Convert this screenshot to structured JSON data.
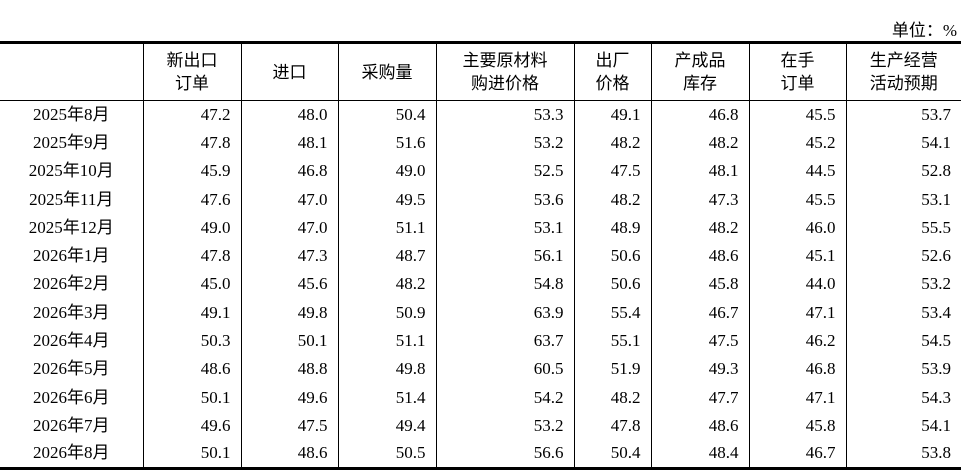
{
  "unit": "单位：%",
  "table": {
    "columns": [
      [
        "新出口",
        "订单"
      ],
      [
        "进口"
      ],
      [
        "采购量"
      ],
      [
        "主要原材料",
        "购进价格"
      ],
      [
        "出厂",
        "价格"
      ],
      [
        "产成品",
        "库存"
      ],
      [
        "在手",
        "订单"
      ],
      [
        "生产经营",
        "活动预期"
      ]
    ],
    "rows": [
      [
        "2025年8月",
        "47.2",
        "48.0",
        "50.4",
        "53.3",
        "49.1",
        "46.8",
        "45.5",
        "53.7"
      ],
      [
        "2025年9月",
        "47.8",
        "48.1",
        "51.6",
        "53.2",
        "48.2",
        "48.2",
        "45.2",
        "54.1"
      ],
      [
        "2025年10月",
        "45.9",
        "46.8",
        "49.0",
        "52.5",
        "47.5",
        "48.1",
        "44.5",
        "52.8"
      ],
      [
        "2025年11月",
        "47.6",
        "47.0",
        "49.5",
        "53.6",
        "48.2",
        "47.3",
        "45.5",
        "53.1"
      ],
      [
        "2025年12月",
        "49.0",
        "47.0",
        "51.1",
        "53.1",
        "48.9",
        "48.2",
        "46.0",
        "55.5"
      ],
      [
        "2026年1月",
        "47.8",
        "47.3",
        "48.7",
        "56.1",
        "50.6",
        "48.6",
        "45.1",
        "52.6"
      ],
      [
        "2026年2月",
        "45.0",
        "45.6",
        "48.2",
        "54.8",
        "50.6",
        "45.8",
        "44.0",
        "53.2"
      ],
      [
        "2026年3月",
        "49.1",
        "49.8",
        "50.9",
        "63.9",
        "55.4",
        "46.7",
        "47.1",
        "53.4"
      ],
      [
        "2026年4月",
        "50.3",
        "50.1",
        "51.1",
        "63.7",
        "55.1",
        "47.5",
        "46.2",
        "54.5"
      ],
      [
        "2026年5月",
        "48.6",
        "48.8",
        "49.8",
        "60.5",
        "51.9",
        "49.3",
        "46.8",
        "53.9"
      ],
      [
        "2026年6月",
        "50.1",
        "49.6",
        "51.4",
        "54.2",
        "48.2",
        "47.7",
        "47.1",
        "54.3"
      ],
      [
        "2026年7月",
        "49.6",
        "47.5",
        "49.4",
        "53.2",
        "47.8",
        "48.6",
        "45.8",
        "54.1"
      ],
      [
        "2026年8月",
        "50.1",
        "48.6",
        "50.5",
        "56.6",
        "50.4",
        "48.4",
        "46.7",
        "53.8"
      ]
    ]
  }
}
